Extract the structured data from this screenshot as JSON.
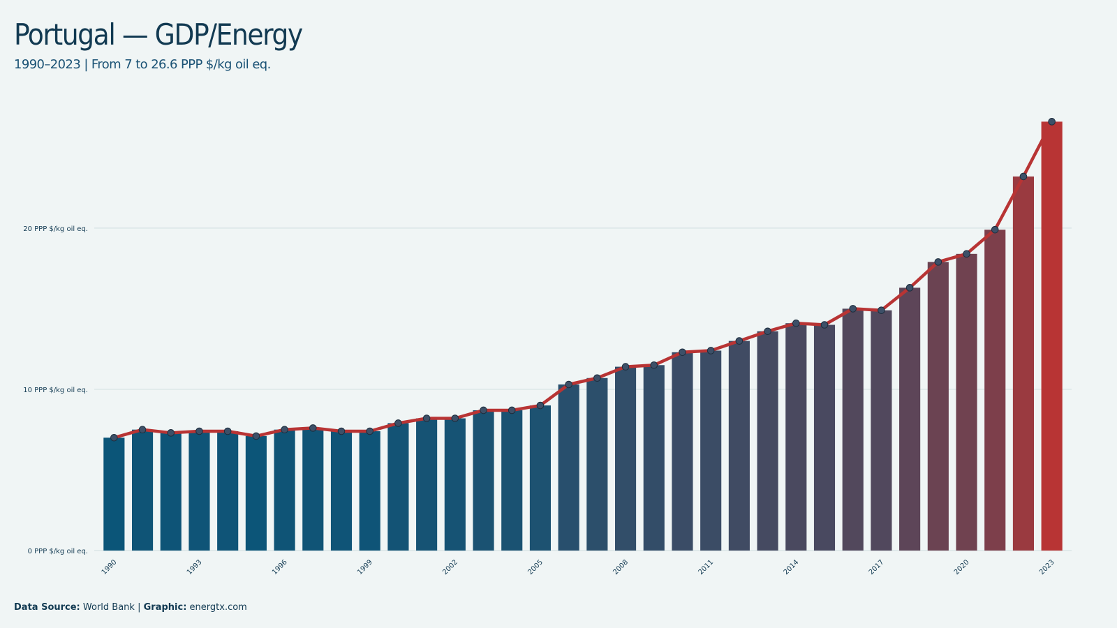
{
  "chart_data": {
    "type": "bar",
    "title": "Portugal — GDP/Energy",
    "subtitle": "1990–2023 | From 7 to 26.6 PPP $/kg oil eq.",
    "x": [
      1990,
      1991,
      1992,
      1993,
      1994,
      1995,
      1996,
      1997,
      1998,
      1999,
      2000,
      2001,
      2002,
      2003,
      2004,
      2005,
      2006,
      2007,
      2008,
      2009,
      2010,
      2011,
      2012,
      2013,
      2014,
      2015,
      2016,
      2017,
      2018,
      2019,
      2020,
      2021,
      2022,
      2023
    ],
    "values": [
      7.0,
      7.5,
      7.3,
      7.4,
      7.4,
      7.1,
      7.5,
      7.6,
      7.4,
      7.4,
      7.9,
      8.2,
      8.2,
      8.7,
      8.7,
      9.0,
      10.3,
      10.7,
      11.4,
      11.5,
      12.3,
      12.4,
      13.0,
      13.6,
      14.1,
      14.0,
      15.0,
      14.9,
      16.3,
      17.9,
      18.4,
      19.9,
      23.2,
      26.6
    ],
    "xlim": [
      1989.5,
      2023.5
    ],
    "xticks": [
      1990,
      1993,
      1996,
      1999,
      2002,
      2005,
      2008,
      2011,
      2014,
      2017,
      2020,
      2023
    ],
    "ylim": [
      0,
      28
    ],
    "yticks": [
      {
        "value": 0,
        "label": "0 PPP $/kg oil eq."
      },
      {
        "value": 10,
        "label": "10 PPP $/kg oil eq."
      },
      {
        "value": 20,
        "label": "20 PPP $/kg oil eq."
      }
    ],
    "grid": true,
    "bar_color_low": "#0b5578",
    "bar_color_high": "#b83434",
    "line_color": "#b83434",
    "point_color": "#3d5068",
    "footer": {
      "source_label": "Data Source:",
      "source": "World Bank",
      "separator": "|",
      "credit_label": "Graphic:",
      "credit": "energtx.com"
    }
  }
}
